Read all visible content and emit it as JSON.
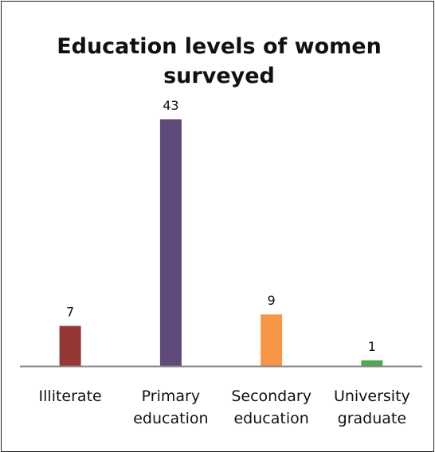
{
  "chart_data": {
    "type": "bar",
    "title": "Education levels of women surveyed",
    "categories": [
      [
        "Illiterate"
      ],
      [
        "Primary",
        "education"
      ],
      [
        "Secondary",
        "education"
      ],
      [
        "University",
        "graduate"
      ]
    ],
    "values": [
      7,
      43,
      9,
      1
    ],
    "colors": [
      "#953735",
      "#604a7b",
      "#f79646",
      "#4ea84e"
    ],
    "axis_color": "#888888",
    "ylim": [
      0,
      43
    ],
    "grid": false,
    "legend": "none"
  }
}
